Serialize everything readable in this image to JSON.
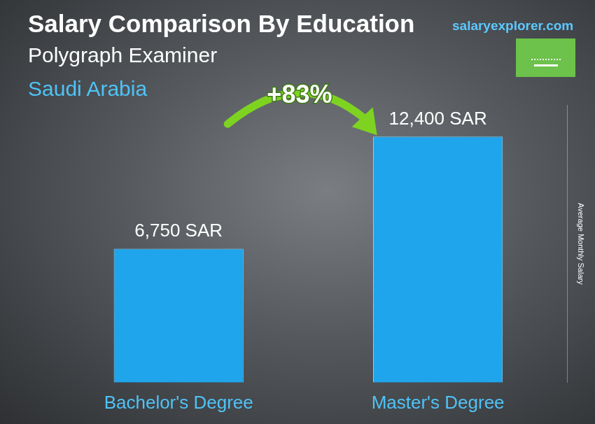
{
  "chart_data": {
    "type": "bar",
    "title": "Salary Comparison By Education",
    "subtitle": "Polygraph Examiner",
    "location": "Saudi Arabia",
    "source": "salaryexplorer.com",
    "categories": [
      "Bachelor's Degree",
      "Master's Degree"
    ],
    "values": [
      6750,
      12400
    ],
    "value_labels": [
      "6,750 SAR",
      "12,400 SAR"
    ],
    "data_labels": true,
    "annotation": "+83%",
    "y_label": "Average Monthly Salary",
    "color": "#1ea5ec",
    "ylim": [
      0,
      14000
    ],
    "tick_labels": "x",
    "grid": false
  }
}
